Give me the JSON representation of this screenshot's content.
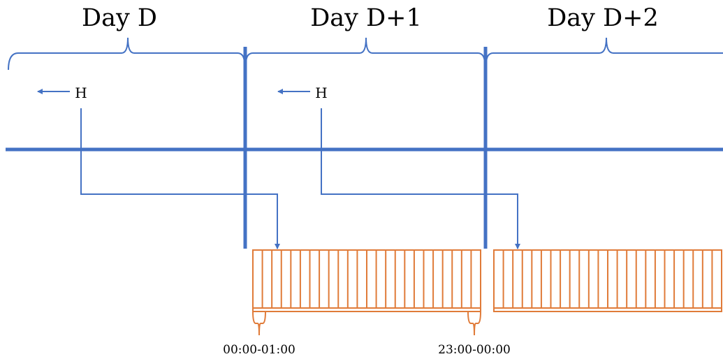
{
  "colors": {
    "timeline": "#4472C4",
    "hour_blocks": "#E07B39",
    "text": "#000000"
  },
  "days": [
    {
      "label": "Day D"
    },
    {
      "label": "Day D+1"
    },
    {
      "label": "Day D+2"
    }
  ],
  "markers": [
    {
      "label": "H",
      "arrow": "left-arrow"
    },
    {
      "label": "H",
      "arrow": "left-arrow"
    }
  ],
  "hour_groups": [
    {
      "hours": 24
    },
    {
      "hours": 24
    }
  ],
  "hour_labels": {
    "first": "00:00-01:00",
    "last": "23:00-00:00"
  }
}
